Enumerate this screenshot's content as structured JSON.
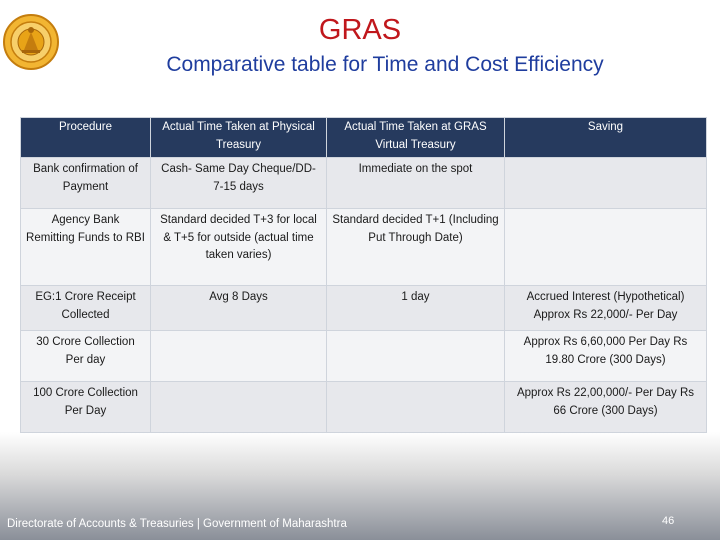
{
  "header": {
    "title": "GRAS",
    "subtitle": "Comparative table for Time and Cost Efficiency"
  },
  "table": {
    "columns": [
      "Procedure",
      "Actual Time Taken at Physical Treasury",
      "Actual Time Taken at GRAS Virtual Treasury",
      "Saving"
    ],
    "rows": [
      [
        "Bank confirmation of Payment",
        "Cash- Same Day Cheque/DD- 7-15 days",
        "Immediate on the spot",
        ""
      ],
      [
        "Agency Bank Remitting Funds to RBI",
        "Standard decided T+3 for local & T+5 for outside (actual time taken varies)",
        "Standard decided T+1 (Including Put Through Date)",
        ""
      ],
      [
        "EG:1 Crore Receipt Collected",
        "Avg 8 Days",
        "1 day",
        "Accrued Interest (Hypothetical) Approx Rs 22,000/- Per Day"
      ],
      [
        "30 Crore Collection Per day",
        "",
        "",
        "Approx Rs 6,60,000 Per Day Rs 19.80 Crore (300 Days)"
      ],
      [
        "100 Crore Collection Per Day",
        "",
        "",
        "Approx Rs 22,00,000/- Per Day Rs 66 Crore (300 Days)"
      ]
    ]
  },
  "footer": {
    "text": "Directorate of Accounts & Treasuries | Government of Maharashtra",
    "page_number": "46"
  },
  "logo": {
    "icon": "maharashtra-seal-icon",
    "color": "#e8a317"
  }
}
